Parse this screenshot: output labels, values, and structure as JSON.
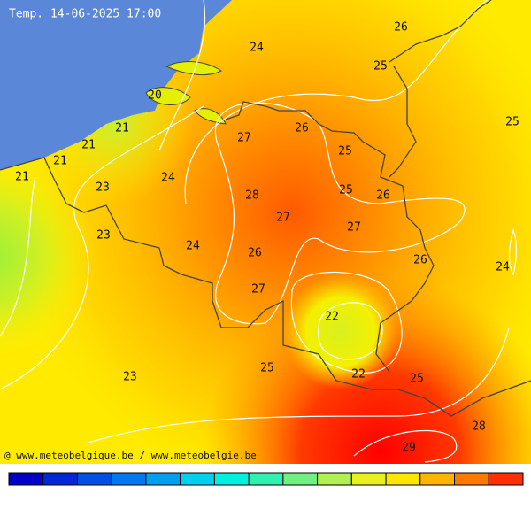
{
  "title": "Temp. 14-06-2025 17:00",
  "labels": [
    26,
    24,
    25,
    20,
    25,
    21,
    26,
    27,
    21,
    25,
    21,
    21,
    24,
    23,
    28,
    25,
    26,
    27,
    27,
    23,
    24,
    26,
    26,
    24,
    27,
    22,
    25,
    22,
    23,
    25,
    28,
    29
  ],
  "credit": "@ www.meteobelgique.be / www.meteobelgie.be"
}
